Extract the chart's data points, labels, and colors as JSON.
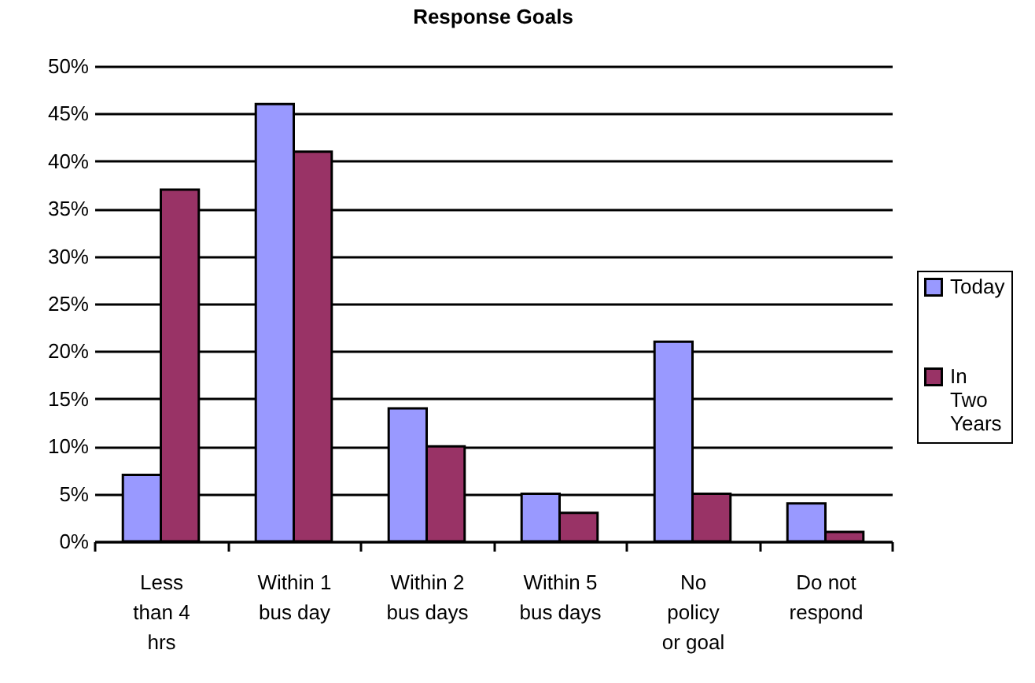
{
  "chart_data": {
    "type": "bar",
    "title": "Response Goals",
    "categories": [
      "Less than 4 hrs",
      "Within 1 bus day",
      "Within 2 bus days",
      "Within 5 bus days",
      "No policy or goal",
      "Do not respond"
    ],
    "series": [
      {
        "name": "Today",
        "color": "#9999ff",
        "values": [
          7,
          46,
          14,
          5,
          21,
          4
        ]
      },
      {
        "name": "In Two Years",
        "color": "#993366",
        "values": [
          37,
          41,
          10,
          3,
          5,
          1
        ]
      }
    ],
    "ylim": [
      0,
      50
    ],
    "yticks": [
      {
        "value": 0,
        "label": "0%"
      },
      {
        "value": 5,
        "label": "5%"
      },
      {
        "value": 10,
        "label": "10%"
      },
      {
        "value": 15,
        "label": "15%"
      },
      {
        "value": 20,
        "label": "20%"
      },
      {
        "value": 25,
        "label": "25%"
      },
      {
        "value": 30,
        "label": "30%"
      },
      {
        "value": 35,
        "label": "35%"
      },
      {
        "value": 40,
        "label": "40%"
      },
      {
        "value": 45,
        "label": "45%"
      },
      {
        "value": 50,
        "label": "50%"
      }
    ],
    "grid": "y",
    "legend": "right"
  }
}
